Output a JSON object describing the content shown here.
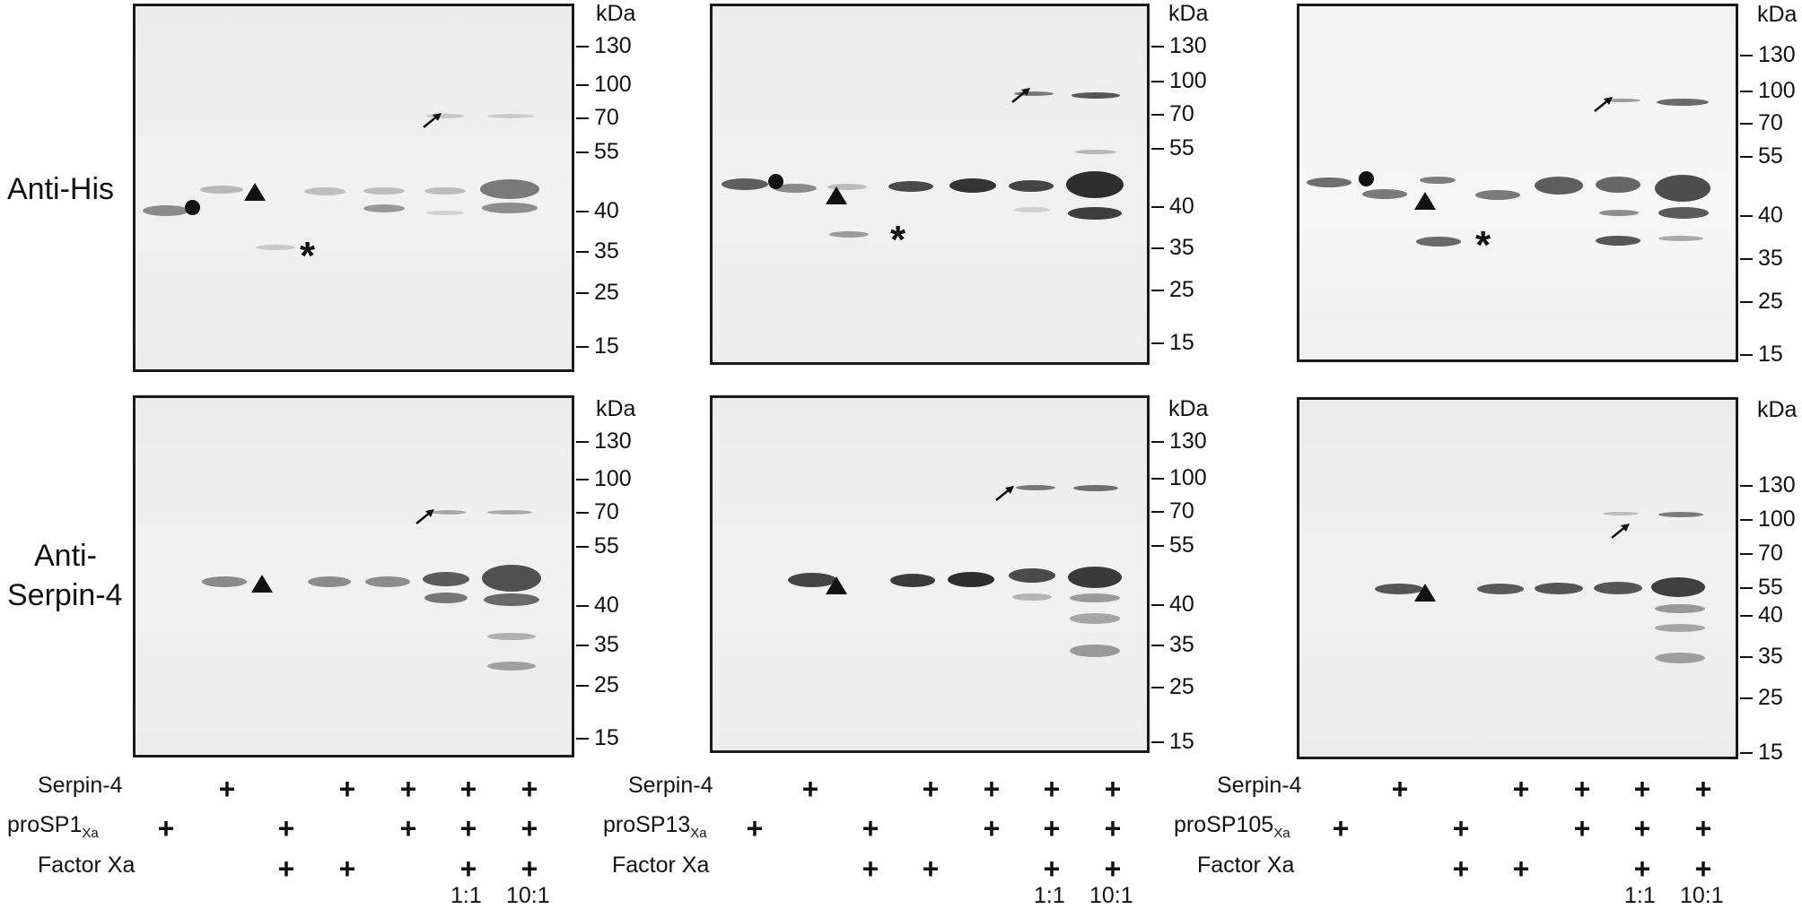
{
  "row_labels": {
    "anti_his": "Anti-His",
    "anti_serpin_line1": "Anti-",
    "anti_serpin_line2": "Serpin-4"
  },
  "kda_label": "kDa",
  "ticks": [
    "130",
    "100",
    "70",
    "55",
    "40",
    "35",
    "25",
    "15"
  ],
  "markers": {
    "star": "*"
  },
  "panels": [
    {
      "condition_labels": [
        "Serpin-4",
        "proSP1",
        "Factor Xa"
      ],
      "protease_sub": "Xa"
    },
    {
      "condition_labels": [
        "Serpin-4",
        "proSP13",
        "Factor Xa"
      ],
      "protease_sub": "Xa"
    },
    {
      "condition_labels": [
        "Serpin-4",
        "proSP105",
        "Factor Xa"
      ],
      "protease_sub": "Xa"
    }
  ],
  "lanes": {
    "serpin4": [
      false,
      true,
      false,
      true,
      true,
      true,
      true
    ],
    "protease": [
      true,
      false,
      true,
      false,
      true,
      true,
      true
    ],
    "factor_xa": [
      false,
      false,
      true,
      true,
      false,
      true,
      true
    ]
  },
  "plus_symbol": "+",
  "ratios": [
    "1:1",
    "10:1"
  ]
}
